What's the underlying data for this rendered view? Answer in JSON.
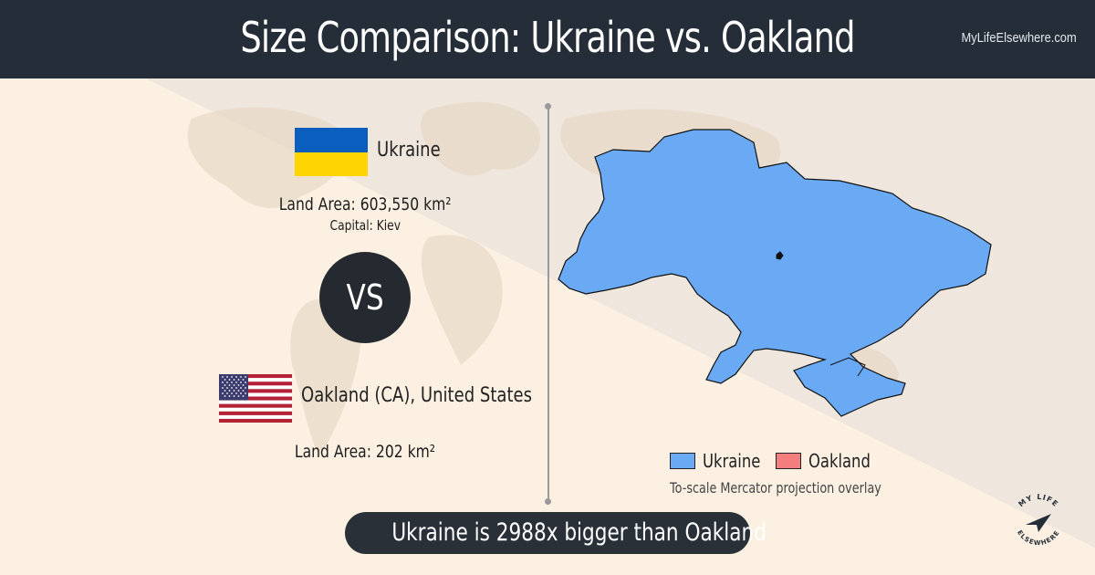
{
  "header": {
    "title": "Size Comparison: Ukraine vs. Oakland",
    "site": "MyLifeElsewhere.com"
  },
  "place1": {
    "name": "Ukraine",
    "land_area": "Land Area: 603,550 km²",
    "capital": "Capital: Kiev",
    "flag_colors": [
      "#0057b7",
      "#ffd700"
    ]
  },
  "vs_label": "VS",
  "place2": {
    "name": "Oakland (CA), United States",
    "land_area": "Land Area: 202 km²"
  },
  "legend": {
    "items": [
      {
        "label": "Ukraine",
        "color": "#6aaaf4"
      },
      {
        "label": "Oakland",
        "color": "#f47d7d"
      }
    ],
    "note": "To-scale Mercator projection overlay"
  },
  "verdict": "Ukraine is 2988x bigger than Oakland",
  "logo": {
    "text_top": "MY LIFE",
    "text_bottom": "ELSEWHERE"
  },
  "colors": {
    "header_bg": "#252e38",
    "ukraine_fill": "#6aaaf4",
    "oakland_fill": "#f47d7d",
    "pill_bg": "#2a3038"
  }
}
